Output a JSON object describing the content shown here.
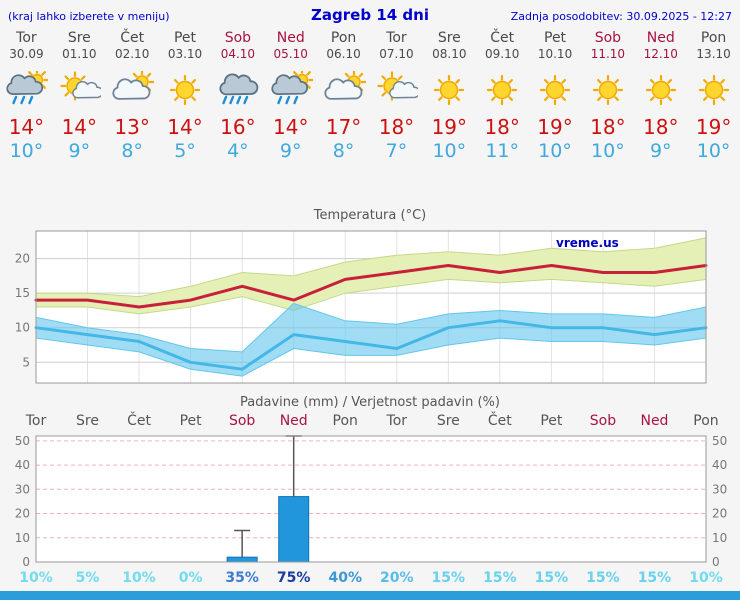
{
  "header": {
    "left_note": "(kraj lahko izberete v meniju)",
    "title": "Zagreb 14 dni",
    "updated": "Zadnja posodobitev: 30.09.2025 - 12:27"
  },
  "colors": {
    "accent_blue": "#0000cc",
    "tmax_red": "#cc1111",
    "tmin_blue": "#3fa8dd",
    "weekend_red": "#a6133f",
    "weekday_gray": "#4a4a4a",
    "footer_bar": "#2b9ed9"
  },
  "forecast": {
    "days": [
      {
        "name": "Tor",
        "date": "30.09",
        "weekend": false,
        "icon": "rain-sun",
        "tmax": 14,
        "tmin": 10
      },
      {
        "name": "Sre",
        "date": "01.10",
        "weekend": false,
        "icon": "sun-small-cloud",
        "tmax": 14,
        "tmin": 9
      },
      {
        "name": "Čet",
        "date": "02.10",
        "weekend": false,
        "icon": "cloud-sun",
        "tmax": 13,
        "tmin": 8
      },
      {
        "name": "Pet",
        "date": "03.10",
        "weekend": false,
        "icon": "sun",
        "tmax": 14,
        "tmin": 5
      },
      {
        "name": "Sob",
        "date": "04.10",
        "weekend": true,
        "icon": "rain-heavy",
        "tmax": 16,
        "tmin": 4
      },
      {
        "name": "Ned",
        "date": "05.10",
        "weekend": true,
        "icon": "rain-sun",
        "tmax": 14,
        "tmin": 9
      },
      {
        "name": "Pon",
        "date": "06.10",
        "weekend": false,
        "icon": "cloud-sun",
        "tmax": 17,
        "tmin": 8
      },
      {
        "name": "Tor",
        "date": "07.10",
        "weekend": false,
        "icon": "sun-small-cloud",
        "tmax": 18,
        "tmin": 7
      },
      {
        "name": "Sre",
        "date": "08.10",
        "weekend": false,
        "icon": "sun",
        "tmax": 19,
        "tmin": 10
      },
      {
        "name": "Čet",
        "date": "09.10",
        "weekend": false,
        "icon": "sun",
        "tmax": 18,
        "tmin": 11
      },
      {
        "name": "Pet",
        "date": "10.10",
        "weekend": false,
        "icon": "sun",
        "tmax": 19,
        "tmin": 10
      },
      {
        "name": "Sob",
        "date": "11.10",
        "weekend": true,
        "icon": "sun",
        "tmax": 18,
        "tmin": 10
      },
      {
        "name": "Ned",
        "date": "12.10",
        "weekend": true,
        "icon": "sun",
        "tmax": 18,
        "tmin": 9
      },
      {
        "name": "Pon",
        "date": "13.10",
        "weekend": false,
        "icon": "sun",
        "tmax": 19,
        "tmin": 10
      }
    ]
  },
  "chart_data": [
    {
      "type": "line",
      "title": "Temperatura (°C)",
      "x_labels": [
        "Tor",
        "Sre",
        "Čet",
        "Pet",
        "Sob",
        "Ned",
        "Pon",
        "Tor",
        "Sre",
        "Čet",
        "Pet",
        "Sob",
        "Ned",
        "Pon"
      ],
      "ylim": [
        2,
        24
      ],
      "yticks": [
        5,
        10,
        15,
        20
      ],
      "watermark": "vreme.us",
      "series": [
        {
          "name": "temperatura-max",
          "color": "#c8203a",
          "width": 3,
          "values": [
            14,
            14,
            13,
            14,
            16,
            14,
            17,
            18,
            19,
            18,
            19,
            18,
            18,
            19
          ]
        },
        {
          "name": "temperatura-min",
          "color": "#45b7e6",
          "width": 3,
          "values": [
            10,
            9,
            8,
            5,
            4,
            9,
            8,
            7,
            10,
            11,
            10,
            10,
            9,
            10
          ]
        }
      ],
      "bands": [
        {
          "name": "temp-max-range",
          "fill": "#e4f0b5",
          "edge": "#c3d98a",
          "upper": [
            15,
            15,
            14.5,
            16,
            18,
            17.5,
            19.5,
            20.5,
            21,
            20.5,
            21.5,
            21,
            21.5,
            23
          ],
          "lower": [
            13,
            13,
            12,
            13,
            14.5,
            12.5,
            15,
            16,
            17,
            16.5,
            17,
            16.5,
            16,
            17
          ]
        },
        {
          "name": "temp-min-range",
          "fill": "rgba(96,198,238,0.6)",
          "edge": "#63c6ec",
          "upper": [
            11.5,
            10,
            9,
            7,
            6.5,
            13.5,
            11,
            10.5,
            12,
            12.5,
            12,
            12,
            11.5,
            13
          ],
          "lower": [
            8.5,
            7.5,
            6.5,
            4,
            3,
            7,
            6,
            6,
            7.5,
            8.5,
            8,
            8,
            7.5,
            8.5
          ]
        }
      ]
    },
    {
      "type": "bar",
      "title": "Padavine (mm) / Verjetnost padavin (%)",
      "x_labels": [
        "Tor",
        "Sre",
        "Čet",
        "Pet",
        "Sob",
        "Ned",
        "Pon",
        "Tor",
        "Sre",
        "Čet",
        "Pet",
        "Sob",
        "Ned",
        "Pon"
      ],
      "ylim": [
        0,
        52
      ],
      "yticks": [
        0,
        10,
        20,
        30,
        40,
        50
      ],
      "bar_color": "#2196dc",
      "bar_edge": "#1173b4",
      "values_mm": [
        0,
        0,
        0,
        0,
        2,
        27,
        0,
        0,
        0,
        0,
        0,
        0,
        0,
        0
      ],
      "whisker_mm": [
        0,
        0,
        0,
        0,
        13,
        52,
        0,
        0,
        0,
        0,
        0,
        0,
        0,
        0
      ],
      "probabilities": [
        {
          "label": "10%",
          "color": "#72dbee"
        },
        {
          "label": "5%",
          "color": "#72dbee"
        },
        {
          "label": "10%",
          "color": "#72dbee"
        },
        {
          "label": "0%",
          "color": "#72dbee"
        },
        {
          "label": "35%",
          "color": "#3c7ccf"
        },
        {
          "label": "75%",
          "color": "#1a3ba0"
        },
        {
          "label": "40%",
          "color": "#3f97d6"
        },
        {
          "label": "20%",
          "color": "#58bde6"
        },
        {
          "label": "15%",
          "color": "#68d2ec"
        },
        {
          "label": "15%",
          "color": "#68d2ec"
        },
        {
          "label": "15%",
          "color": "#68d2ec"
        },
        {
          "label": "15%",
          "color": "#68d2ec"
        },
        {
          "label": "15%",
          "color": "#68d2ec"
        },
        {
          "label": "10%",
          "color": "#72dbee"
        }
      ]
    }
  ]
}
